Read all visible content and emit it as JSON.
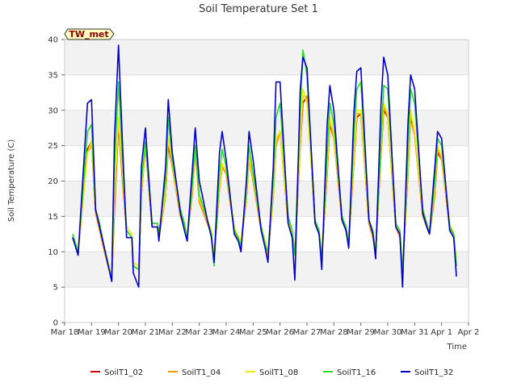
{
  "chart_data": {
    "type": "line",
    "title": "Soil Temperature Set 1",
    "xlabel": "Time",
    "ylabel": "Soil Temperature (C)",
    "site_tag": "TW_met",
    "ylim": [
      0,
      40
    ],
    "yticks": [
      0,
      5,
      10,
      15,
      20,
      25,
      30,
      35,
      40
    ],
    "xlim": [
      0,
      15
    ],
    "xtick_values": [
      0,
      1,
      2,
      3,
      4,
      5,
      6,
      7,
      8,
      9,
      10,
      11,
      12,
      13,
      14,
      15
    ],
    "xtick_labels": [
      "Mar 18",
      "Mar 19",
      "Mar 20",
      "Mar 21",
      "Mar 22",
      "Mar 23",
      "Mar 24",
      "Mar 25",
      "Mar 26",
      "Mar 27",
      "Mar 28",
      "Mar 29",
      "Mar 30",
      "Mar 31",
      "Apr 1",
      "Apr 2"
    ],
    "grid": "horizontal bands",
    "legend_position": "bottom",
    "series": [
      {
        "name": "SoilT1_02",
        "color": "#cc0000",
        "x": [
          0.3,
          0.5,
          0.85,
          1.0,
          1.15,
          1.3,
          1.45,
          1.75,
          1.85,
          2.0,
          2.15,
          2.3,
          2.5,
          2.55,
          2.75,
          2.85,
          3.0,
          3.25,
          3.45,
          3.5,
          3.75,
          3.85,
          4.0,
          4.3,
          4.45,
          4.55,
          4.75,
          4.85,
          5.0,
          5.3,
          5.45,
          5.55,
          5.75,
          5.85,
          6.0,
          6.3,
          6.45,
          6.55,
          6.75,
          6.85,
          7.0,
          7.3,
          7.45,
          7.55,
          7.75,
          7.85,
          8.0,
          8.3,
          8.45,
          8.55,
          8.75,
          8.85,
          9.0,
          9.3,
          9.45,
          9.55,
          9.75,
          9.85,
          10.0,
          10.3,
          10.45,
          10.55,
          10.75,
          10.85,
          11.0,
          11.3,
          11.45,
          11.55,
          11.75,
          11.85,
          12.0,
          12.3,
          12.45,
          12.55,
          12.75,
          12.85,
          13.0,
          13.3,
          13.45,
          13.55,
          13.75,
          13.85,
          14.0,
          14.3,
          14.45,
          14.55
        ],
        "y": [
          12.0,
          9.8,
          24.5,
          25.5,
          15.5,
          13.0,
          10.5,
          6.0,
          16.0,
          28.0,
          20.0,
          13.0,
          12.0,
          8.0,
          7.5,
          18.0,
          25.0,
          13.5,
          13.5,
          12.0,
          18.0,
          25.0,
          22.0,
          15.0,
          13.5,
          12.0,
          18.5,
          24.5,
          17.0,
          14.0,
          12.5,
          9.0,
          19.0,
          22.0,
          21.0,
          13.0,
          11.5,
          11.0,
          17.5,
          23.0,
          20.0,
          13.0,
          11.0,
          9.5,
          18.0,
          25.0,
          27.0,
          14.0,
          12.0,
          10.0,
          25.0,
          31.0,
          32.0,
          14.0,
          12.5,
          9.0,
          21.0,
          28.0,
          26.0,
          14.5,
          13.0,
          11.5,
          23.0,
          29.0,
          29.5,
          14.0,
          12.0,
          10.0,
          24.0,
          30.0,
          29.0,
          13.5,
          12.0,
          7.5,
          21.0,
          29.0,
          26.5,
          15.0,
          13.5,
          12.5,
          18.0,
          24.0,
          23.0,
          13.5,
          12.0,
          8.0
        ]
      },
      {
        "name": "SoilT1_04",
        "color": "#ff9900",
        "x": [
          0.3,
          0.5,
          0.85,
          1.0,
          1.15,
          1.3,
          1.45,
          1.75,
          1.85,
          2.0,
          2.15,
          2.3,
          2.5,
          2.55,
          2.75,
          2.85,
          3.0,
          3.25,
          3.45,
          3.5,
          3.75,
          3.85,
          4.0,
          4.3,
          4.45,
          4.55,
          4.75,
          4.85,
          5.0,
          5.3,
          5.45,
          5.55,
          5.75,
          5.85,
          6.0,
          6.3,
          6.45,
          6.55,
          6.75,
          6.85,
          7.0,
          7.3,
          7.45,
          7.55,
          7.75,
          7.85,
          8.0,
          8.3,
          8.45,
          8.55,
          8.75,
          8.85,
          9.0,
          9.3,
          9.45,
          9.55,
          9.75,
          9.85,
          10.0,
          10.3,
          10.45,
          10.55,
          10.75,
          10.85,
          11.0,
          11.3,
          11.45,
          11.55,
          11.75,
          11.85,
          12.0,
          12.3,
          12.45,
          12.55,
          12.75,
          12.85,
          13.0,
          13.3,
          13.45,
          13.55,
          13.75,
          13.85,
          14.0,
          14.3,
          14.45,
          14.55
        ],
        "y": [
          12.2,
          9.8,
          24.0,
          25.0,
          15.5,
          13.0,
          10.5,
          6.0,
          17.0,
          28.5,
          20.5,
          13.0,
          12.0,
          8.0,
          7.5,
          18.0,
          25.0,
          13.5,
          13.5,
          12.0,
          18.0,
          26.0,
          22.0,
          15.0,
          13.5,
          12.0,
          18.5,
          24.5,
          17.0,
          14.0,
          12.5,
          9.0,
          19.0,
          22.0,
          21.0,
          13.0,
          11.5,
          11.0,
          17.5,
          23.0,
          20.0,
          13.0,
          11.0,
          9.5,
          18.0,
          25.0,
          27.0,
          14.0,
          12.0,
          10.0,
          25.0,
          32.0,
          32.0,
          14.0,
          12.5,
          9.0,
          21.0,
          28.5,
          26.0,
          14.5,
          13.0,
          11.5,
          23.0,
          29.5,
          29.5,
          14.0,
          12.0,
          10.0,
          24.0,
          30.5,
          29.0,
          13.5,
          12.0,
          7.5,
          21.0,
          29.5,
          26.5,
          15.0,
          13.5,
          12.5,
          18.0,
          24.5,
          23.0,
          13.5,
          12.0,
          8.0
        ]
      },
      {
        "name": "SoilT1_08",
        "color": "#eeee00",
        "x": [
          0.3,
          0.5,
          0.85,
          1.0,
          1.15,
          1.3,
          1.45,
          1.75,
          1.85,
          2.0,
          2.15,
          2.3,
          2.5,
          2.55,
          2.75,
          2.85,
          3.0,
          3.25,
          3.45,
          3.5,
          3.75,
          3.85,
          4.0,
          4.3,
          4.45,
          4.55,
          4.75,
          4.85,
          5.0,
          5.3,
          5.45,
          5.55,
          5.75,
          5.85,
          6.0,
          6.3,
          6.45,
          6.55,
          6.75,
          6.85,
          7.0,
          7.3,
          7.45,
          7.55,
          7.75,
          7.85,
          8.0,
          8.3,
          8.45,
          8.55,
          8.75,
          8.85,
          9.0,
          9.3,
          9.45,
          9.55,
          9.75,
          9.85,
          10.0,
          10.3,
          10.45,
          10.55,
          10.75,
          10.85,
          11.0,
          11.3,
          11.45,
          11.55,
          11.75,
          11.85,
          12.0,
          12.3,
          12.45,
          12.55,
          12.75,
          12.85,
          13.0,
          13.3,
          13.45,
          13.55,
          13.75,
          13.85,
          14.0,
          14.3,
          14.45,
          14.55
        ],
        "y": [
          12.5,
          10.0,
          24.0,
          25.5,
          16.0,
          13.5,
          11.0,
          6.5,
          18.0,
          29.0,
          21.0,
          13.5,
          12.5,
          8.5,
          8.0,
          18.5,
          25.5,
          14.0,
          14.0,
          12.5,
          18.5,
          26.0,
          22.5,
          15.5,
          14.0,
          12.5,
          19.0,
          25.0,
          17.5,
          14.5,
          13.0,
          9.5,
          19.5,
          22.5,
          21.5,
          13.5,
          12.0,
          11.5,
          18.0,
          23.5,
          20.5,
          13.5,
          11.5,
          10.0,
          18.5,
          26.0,
          27.0,
          14.5,
          12.5,
          10.5,
          26.0,
          33.0,
          31.0,
          14.5,
          13.0,
          9.5,
          22.0,
          29.0,
          26.5,
          15.0,
          13.5,
          12.0,
          24.0,
          30.0,
          30.0,
          14.5,
          12.5,
          10.5,
          25.0,
          31.0,
          29.5,
          14.0,
          12.5,
          8.0,
          22.0,
          30.0,
          27.0,
          15.5,
          14.0,
          13.0,
          19.0,
          25.0,
          23.5,
          14.0,
          12.5,
          8.5
        ]
      },
      {
        "name": "SoilT1_16",
        "color": "#22dd22",
        "x": [
          0.3,
          0.5,
          0.85,
          1.0,
          1.15,
          1.3,
          1.45,
          1.75,
          1.85,
          2.0,
          2.15,
          2.3,
          2.5,
          2.55,
          2.75,
          2.85,
          3.0,
          3.25,
          3.45,
          3.5,
          3.75,
          3.85,
          4.0,
          4.3,
          4.45,
          4.55,
          4.75,
          4.85,
          5.0,
          5.3,
          5.45,
          5.55,
          5.75,
          5.85,
          6.0,
          6.3,
          6.45,
          6.55,
          6.75,
          6.85,
          7.0,
          7.3,
          7.45,
          7.55,
          7.75,
          7.85,
          8.0,
          8.3,
          8.45,
          8.55,
          8.75,
          8.85,
          9.0,
          9.3,
          9.45,
          9.55,
          9.75,
          9.85,
          10.0,
          10.3,
          10.45,
          10.55,
          10.75,
          10.85,
          11.0,
          11.3,
          11.45,
          11.55,
          11.75,
          11.85,
          12.0,
          12.3,
          12.45,
          12.55,
          12.75,
          12.85,
          13.0,
          13.3,
          13.45,
          13.55,
          13.75,
          13.85,
          14.0,
          14.3,
          14.45,
          14.55
        ],
        "y": [
          12.5,
          10.0,
          27.0,
          28.0,
          16.0,
          14.0,
          11.0,
          6.0,
          22.0,
          34.0,
          23.0,
          13.0,
          12.0,
          8.0,
          7.5,
          20.0,
          25.5,
          14.0,
          14.0,
          12.5,
          20.0,
          29.0,
          23.0,
          16.0,
          14.0,
          11.5,
          20.0,
          25.0,
          18.0,
          14.5,
          12.5,
          8.0,
          21.0,
          24.5,
          22.0,
          13.0,
          12.0,
          10.5,
          19.0,
          25.0,
          21.0,
          13.5,
          11.0,
          10.0,
          20.0,
          29.0,
          31.0,
          15.0,
          13.0,
          9.5,
          30.0,
          38.5,
          35.0,
          14.5,
          13.0,
          8.5,
          24.0,
          31.0,
          28.0,
          15.0,
          13.5,
          11.0,
          27.0,
          33.0,
          34.0,
          14.5,
          13.0,
          9.5,
          26.0,
          33.5,
          33.0,
          14.0,
          13.0,
          7.0,
          24.0,
          33.0,
          31.0,
          16.0,
          14.0,
          12.5,
          20.0,
          26.0,
          25.0,
          13.5,
          12.5,
          8.0
        ]
      },
      {
        "name": "SoilT1_32",
        "color": "#0000cc",
        "x": [
          0.3,
          0.5,
          0.85,
          1.0,
          1.15,
          1.3,
          1.45,
          1.75,
          1.85,
          2.0,
          2.15,
          2.3,
          2.5,
          2.55,
          2.75,
          2.85,
          3.0,
          3.25,
          3.45,
          3.5,
          3.75,
          3.85,
          4.0,
          4.3,
          4.45,
          4.55,
          4.75,
          4.85,
          5.0,
          5.3,
          5.45,
          5.55,
          5.75,
          5.85,
          6.0,
          6.3,
          6.45,
          6.55,
          6.75,
          6.85,
          7.0,
          7.3,
          7.45,
          7.55,
          7.75,
          7.85,
          8.0,
          8.3,
          8.45,
          8.55,
          8.75,
          8.85,
          9.0,
          9.3,
          9.45,
          9.55,
          9.75,
          9.85,
          10.0,
          10.3,
          10.45,
          10.55,
          10.75,
          10.85,
          11.0,
          11.3,
          11.45,
          11.55,
          11.75,
          11.85,
          12.0,
          12.3,
          12.45,
          12.55,
          12.75,
          12.85,
          13.0,
          13.3,
          13.45,
          13.55,
          13.75,
          13.85,
          14.0,
          14.3,
          14.45,
          14.55
        ],
        "y": [
          12.0,
          9.5,
          31.0,
          31.5,
          16.0,
          13.5,
          11.0,
          5.8,
          26.0,
          39.2,
          25.0,
          12.0,
          12.0,
          7.0,
          5.0,
          22.0,
          27.5,
          13.5,
          13.5,
          11.5,
          22.0,
          31.5,
          24.0,
          15.5,
          13.0,
          11.5,
          22.0,
          27.5,
          20.0,
          14.5,
          12.0,
          8.5,
          24.0,
          27.0,
          23.0,
          12.5,
          11.5,
          10.0,
          20.0,
          27.0,
          23.0,
          13.0,
          10.5,
          8.5,
          22.0,
          34.0,
          34.0,
          14.0,
          12.0,
          6.0,
          33.0,
          37.5,
          36.0,
          14.0,
          12.5,
          7.5,
          28.0,
          33.5,
          30.0,
          14.5,
          13.0,
          10.5,
          30.0,
          35.5,
          36.0,
          14.5,
          12.5,
          9.0,
          31.0,
          37.5,
          35.0,
          13.5,
          12.5,
          5.0,
          28.0,
          35.0,
          33.0,
          15.5,
          13.5,
          12.5,
          22.0,
          27.0,
          26.0,
          13.0,
          12.0,
          6.5
        ]
      }
    ]
  }
}
